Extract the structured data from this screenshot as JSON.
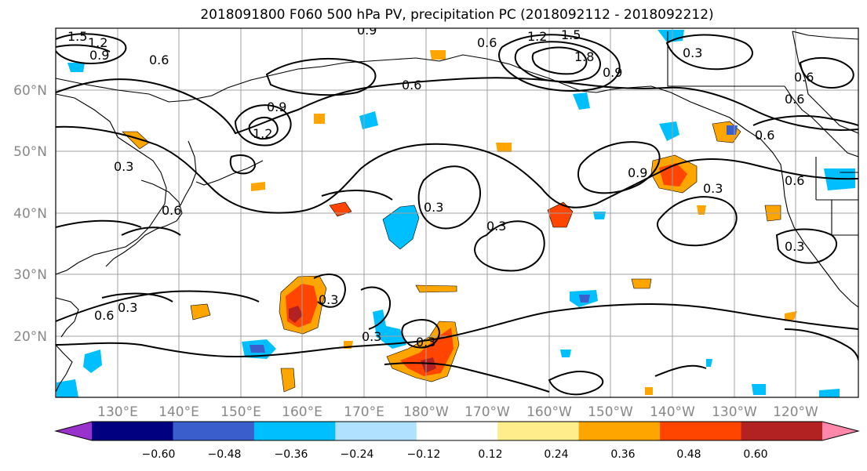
{
  "title": "2018091800 F060 500 hPa PV, precipitation PC (2018092112 - 2018092212)",
  "map": {
    "lat_labels": [
      "60°N",
      "50°N",
      "40°N",
      "30°N",
      "20°N"
    ],
    "lon_labels": [
      "130°E",
      "140°E",
      "150°E",
      "160°E",
      "170°E",
      "180°W",
      "170°W",
      "160°W",
      "150°W",
      "140°W",
      "130°W",
      "120°W"
    ],
    "contour_labels": [
      "1.5",
      "1.2",
      "0.9",
      "0.6",
      "0.9",
      "1.2",
      "1.5",
      "1.8",
      "0.9",
      "0.3",
      "0.6",
      "0.6",
      "0.9",
      "1.2",
      "0.6",
      "0.6",
      "0.9",
      "0.3",
      "0.6",
      "0.6",
      "0.3",
      "0.6",
      "0.3",
      "0.3",
      "0.3",
      "0.3",
      "0.3",
      "0.6",
      "0.3",
      "0.3"
    ]
  },
  "colorbar": {
    "tick_labels": [
      "−0.60",
      "−0.48",
      "−0.36",
      "−0.24",
      "−0.12",
      "0.12",
      "0.24",
      "0.36",
      "0.48",
      "0.60"
    ],
    "colors": [
      "#9932cc",
      "#000080",
      "#3a5fcd",
      "#00bfff",
      "#b0e2ff",
      "#ffffff",
      "#ffec8b",
      "#ffa500",
      "#ff4500",
      "#b22222",
      "#ff88aa"
    ]
  },
  "colors": {
    "grid": "#a0a0a0",
    "coast": "#000000",
    "contour": "#000000",
    "axis_label": "#888888"
  }
}
